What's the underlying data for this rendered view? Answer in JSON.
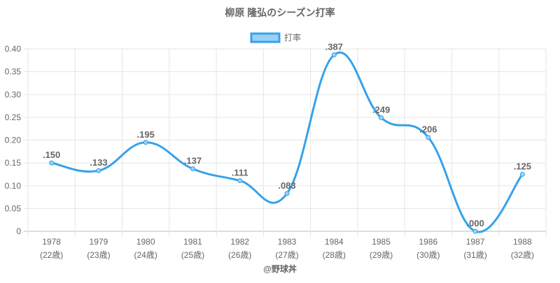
{
  "chart_data": {
    "type": "line",
    "title": "柳原 隆弘のシーズン打率",
    "legend": {
      "label": "打率",
      "placement": "top"
    },
    "categories": [
      "1978",
      "1979",
      "1980",
      "1981",
      "1982",
      "1983",
      "1984",
      "1985",
      "1986",
      "1987",
      "1988"
    ],
    "sublabels": [
      "(22歳)",
      "(23歳)",
      "(24歳)",
      "(25歳)",
      "(26歳)",
      "(27歳)",
      "(28歳)",
      "(29歳)",
      "(30歳)",
      "(31歳)",
      "(32歳)"
    ],
    "series": [
      {
        "name": "打率",
        "values": [
          0.15,
          0.133,
          0.195,
          0.137,
          0.111,
          0.083,
          0.387,
          0.249,
          0.206,
          0.0,
          0.125
        ]
      }
    ],
    "data_labels": [
      ".150",
      ".133",
      ".195",
      ".137",
      ".111",
      ".083",
      ".387",
      ".249",
      ".206",
      ".000",
      ".125"
    ],
    "yticks": [
      "0",
      "0.05",
      "0.10",
      "0.15",
      "0.20",
      "0.25",
      "0.30",
      "0.35",
      "0.40"
    ],
    "ylim": [
      0,
      0.4
    ],
    "grid": true,
    "colors": {
      "line": "#36a2eb",
      "fill": "#9ad0f5"
    }
  },
  "footer": "@野球丼"
}
